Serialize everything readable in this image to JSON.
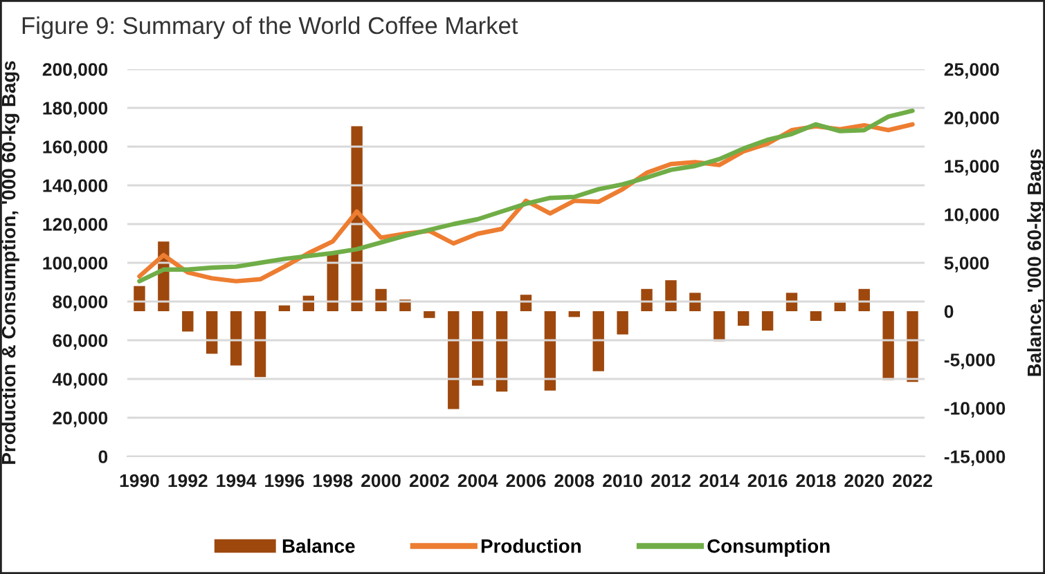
{
  "chart_data": {
    "type": "bar",
    "title": "Figure 9: Summary of the World Coffee Market",
    "categories": [
      "1990",
      null,
      "1992",
      null,
      "1994",
      null,
      "1996",
      null,
      "1998",
      null,
      "2000",
      null,
      "2002",
      null,
      "2004",
      null,
      "2006",
      null,
      "2008",
      null,
      "2010",
      null,
      "2012",
      null,
      "2014",
      null,
      "2016",
      null,
      "2018",
      null,
      "2020",
      null,
      "2022"
    ],
    "series": [
      {
        "name": "Balance",
        "color": "#9e480e",
        "axis": "y2",
        "values": [
          2600,
          7200,
          -2100,
          -4400,
          -5600,
          -6800,
          600,
          1600,
          6000,
          19100,
          2300,
          1200,
          -700,
          -10100,
          -7700,
          -8300,
          1700,
          -8200,
          -600,
          -6200,
          -2400,
          2300,
          3200,
          1900,
          -3100,
          -1500,
          -2000,
          1900,
          -1000,
          900,
          2300,
          -7100,
          -7300
        ]
      },
      {
        "name": "Production",
        "type": "line",
        "color": "#ed7d31",
        "values": [
          93000,
          104000,
          95000,
          92000,
          90500,
          91500,
          98000,
          105000,
          111000,
          126500,
          113000,
          115000,
          116500,
          110000,
          115000,
          117500,
          132000,
          125500,
          132000,
          131500,
          138000,
          146500,
          151000,
          152000,
          150500,
          157500,
          161500,
          168500,
          170500,
          169000,
          171000,
          168500,
          171500
        ]
      },
      {
        "name": "Consumption",
        "type": "line",
        "color": "#70ad47",
        "values": [
          90500,
          96500,
          96500,
          97500,
          98000,
          100000,
          102000,
          103500,
          105000,
          107000,
          110500,
          114000,
          117000,
          120000,
          122500,
          126500,
          130500,
          133500,
          134000,
          138000,
          140500,
          144000,
          148000,
          150000,
          153500,
          159000,
          163500,
          166500,
          171500,
          168000,
          168500,
          175500,
          178500
        ]
      }
    ],
    "ylabel": "Production & Consumption, '000 60-kg Bags",
    "y2label": "Balance, '000 60-kg Bags",
    "ylim": [
      0,
      200000
    ],
    "yticks": [
      0,
      {
        "value": 20000,
        "label": "20,000"
      },
      {
        "value": 40000,
        "label": "40,000"
      },
      {
        "value": 60000,
        "label": "60,000"
      },
      {
        "value": 80000,
        "label": "80,000"
      },
      {
        "value": 100000,
        "label": "100,000"
      },
      {
        "value": 120000,
        "label": "120,000"
      },
      {
        "value": 140000,
        "label": "140,000"
      },
      {
        "value": 160000,
        "label": "160,000"
      },
      {
        "value": 180000,
        "label": "180,000"
      },
      {
        "value": 200000,
        "label": "200,000"
      }
    ],
    "y2lim": [
      -15000,
      25000
    ],
    "y2ticks": [
      {
        "value": -15000,
        "label": "-15,000"
      },
      {
        "value": -10000,
        "label": "-10,000"
      },
      {
        "value": -5000,
        "label": "-5,000"
      },
      0,
      {
        "value": 5000,
        "label": "5,000"
      },
      {
        "value": 10000,
        "label": "10,000"
      },
      {
        "value": 15000,
        "label": "15,000"
      },
      {
        "value": 20000,
        "label": "20,000"
      },
      {
        "value": 25000,
        "label": "25,000"
      }
    ],
    "grid": "y",
    "legend": "bottom"
  }
}
